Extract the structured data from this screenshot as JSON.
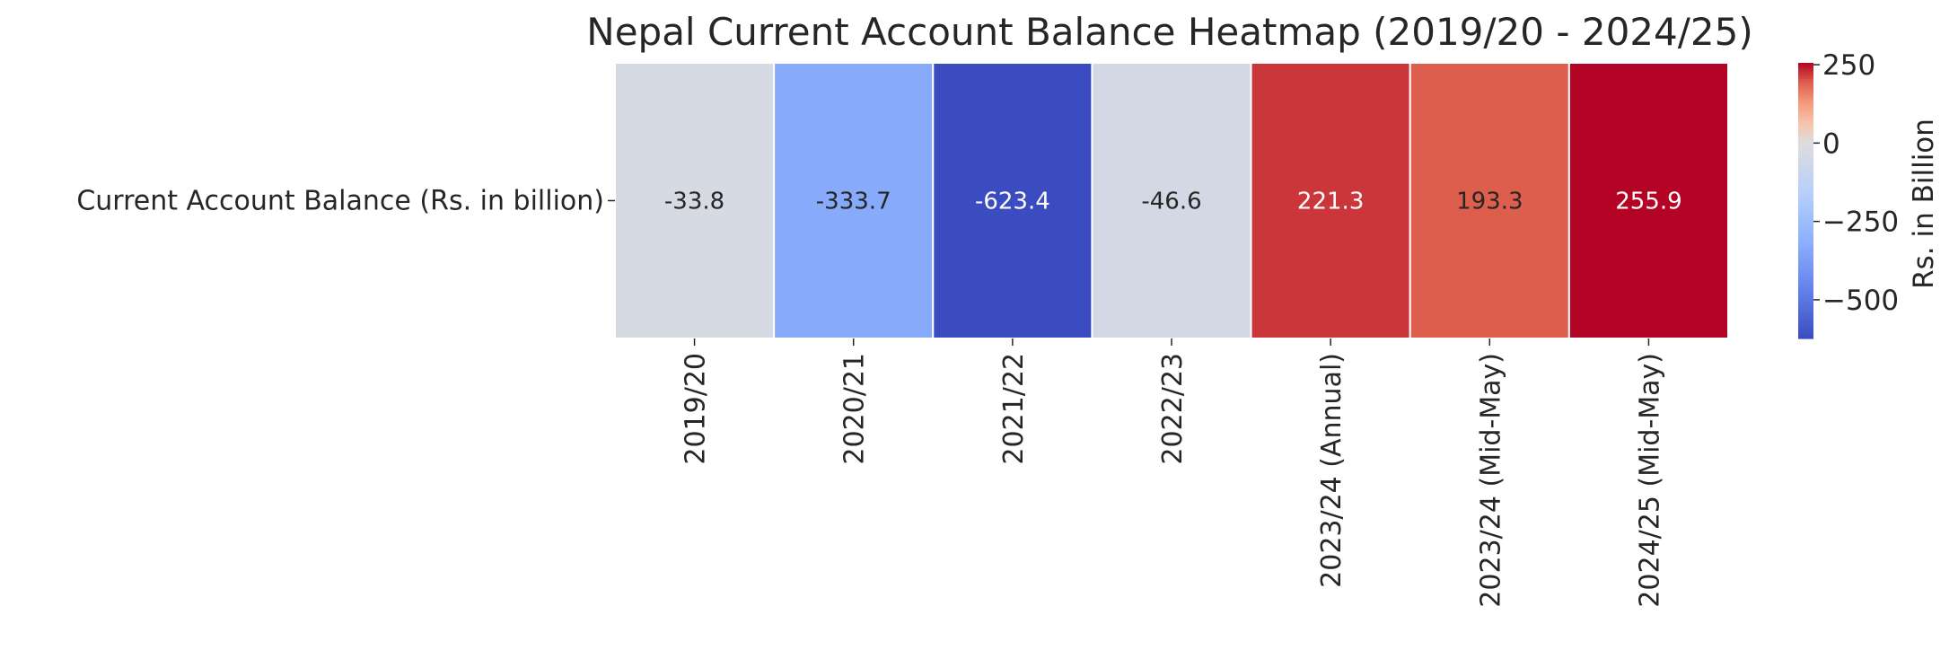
{
  "chart_data": {
    "type": "heatmap",
    "title": "Nepal Current Account Balance Heatmap (2019/20 - 2024/25)",
    "row_labels": [
      "Current Account Balance (Rs. in billion)"
    ],
    "column_labels": [
      "2019/20",
      "2020/21",
      "2021/22",
      "2022/23",
      "2023/24 (Annual)",
      "2023/24 (Mid-May)",
      "2024/25 (Mid-May)"
    ],
    "values": [
      [
        -33.8,
        -333.7,
        -623.4,
        -46.6,
        221.3,
        193.3,
        255.9
      ]
    ],
    "cell_labels": [
      "-33.8",
      "-333.7",
      "-623.4",
      "-46.6",
      "221.3",
      "193.3",
      "255.9"
    ],
    "colormap": "coolwarm",
    "vmin": -623.4,
    "vmax": 255.9,
    "colorbar": {
      "label": "Rs. in Billion",
      "ticks": [
        250,
        0,
        -250,
        -500
      ],
      "tick_labels": [
        "250",
        "0",
        "−250",
        "−500"
      ]
    }
  }
}
